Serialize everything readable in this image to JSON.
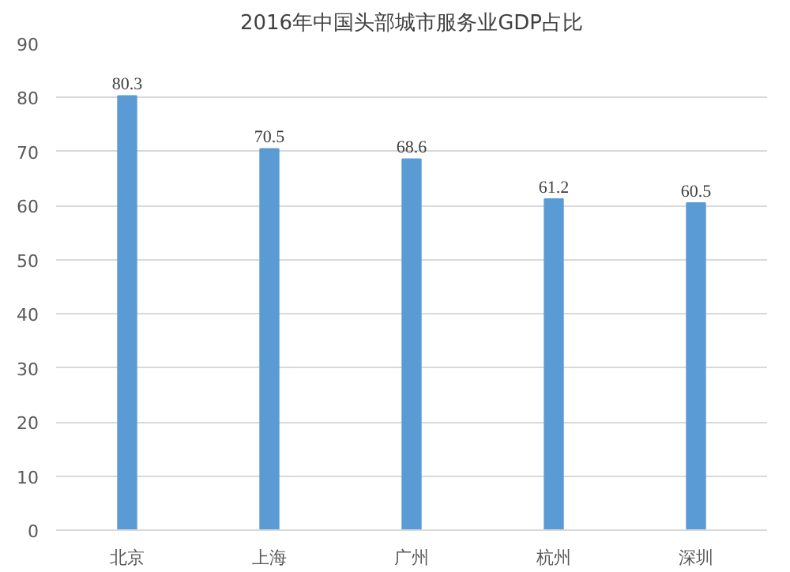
{
  "chart_data": {
    "type": "bar",
    "title": "2016年中国头部城市服务业GDP占比",
    "categories": [
      "北京",
      "上海",
      "广州",
      "杭州",
      "深圳"
    ],
    "values": [
      80.3,
      70.5,
      68.6,
      61.2,
      60.5
    ],
    "color": "#5b9bd5",
    "ylim": [
      0,
      90
    ],
    "yticks": [
      0,
      10,
      20,
      30,
      40,
      50,
      60,
      70,
      80,
      90
    ],
    "grid": "y",
    "data_labels": true
  }
}
